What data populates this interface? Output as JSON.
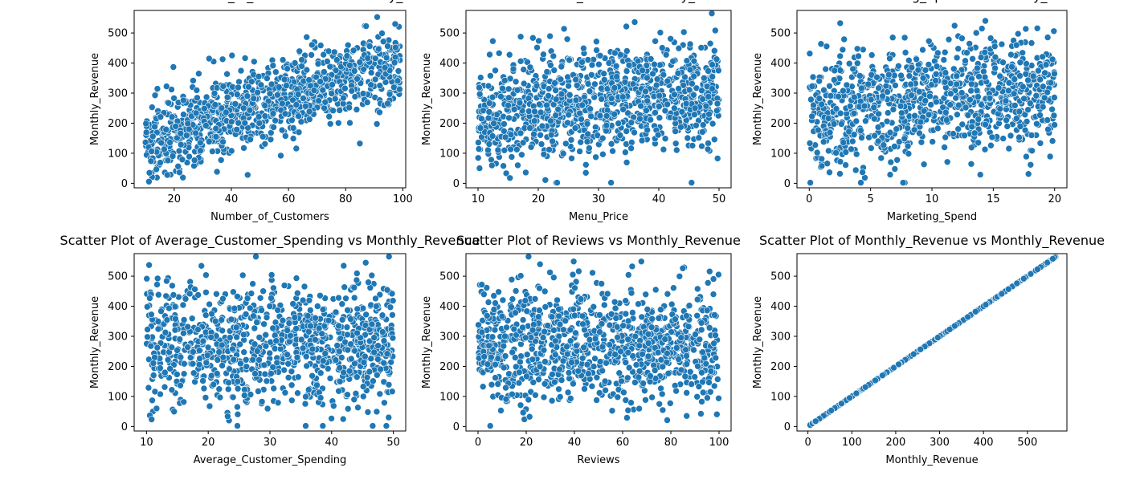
{
  "chart_data": [
    {
      "type": "scatter",
      "title": "Scatter Plot of Number_of_Customers vs Monthly_Revenue",
      "xlabel": "Number_of_Customers",
      "ylabel": "Monthly_Revenue",
      "xlim": [
        6,
        101
      ],
      "ylim": [
        -15,
        575
      ],
      "xticks": [
        20,
        40,
        60,
        80,
        100
      ],
      "yticks": [
        0,
        100,
        200,
        300,
        400,
        500
      ],
      "trend": {
        "x0": 10,
        "x1": 99,
        "y0": 145,
        "y1": 400,
        "noise": 65
      },
      "color": "#1f77b4"
    },
    {
      "type": "scatter",
      "title": "Scatter Plot of Menu_Price vs Monthly_Revenue",
      "xlabel": "Menu_Price",
      "ylabel": "Monthly_Revenue",
      "xlim": [
        8,
        52
      ],
      "ylim": [
        -15,
        575
      ],
      "xticks": [
        10,
        20,
        30,
        40,
        50
      ],
      "yticks": [
        0,
        100,
        200,
        300,
        400,
        500
      ],
      "trend": {
        "x0": 10,
        "x1": 50,
        "y0": 230,
        "y1": 310,
        "noise": 95
      },
      "color": "#1f77b4"
    },
    {
      "type": "scatter",
      "title": "Scatter Plot of Marketing_Spend vs Monthly_Revenue",
      "xlabel": "Marketing_Spend",
      "ylabel": "Monthly_Revenue",
      "xlim": [
        -1,
        21
      ],
      "ylim": [
        -15,
        575
      ],
      "xticks": [
        0,
        5,
        10,
        15,
        20
      ],
      "yticks": [
        0,
        100,
        200,
        300,
        400,
        500
      ],
      "trend": {
        "x0": 0,
        "x1": 20,
        "y0": 240,
        "y1": 310,
        "noise": 95
      },
      "color": "#1f77b4"
    },
    {
      "type": "scatter",
      "title": "Scatter Plot of Average_Customer_Spending vs Monthly_Revenue",
      "xlabel": "Average_Customer_Spending",
      "ylabel": "Monthly_Revenue",
      "xlim": [
        8,
        52
      ],
      "ylim": [
        -15,
        575
      ],
      "xticks": [
        10,
        20,
        30,
        40,
        50
      ],
      "yticks": [
        0,
        100,
        200,
        300,
        400,
        500
      ],
      "trend": {
        "x0": 10,
        "x1": 50,
        "y0": 270,
        "y1": 265,
        "noise": 100
      },
      "color": "#1f77b4"
    },
    {
      "type": "scatter",
      "title": "Scatter Plot of Reviews vs Monthly_Revenue",
      "xlabel": "Reviews",
      "ylabel": "Monthly_Revenue",
      "xlim": [
        -5,
        105
      ],
      "ylim": [
        -15,
        575
      ],
      "xticks": [
        0,
        20,
        40,
        60,
        80,
        100
      ],
      "yticks": [
        0,
        100,
        200,
        300,
        400,
        500
      ],
      "trend": {
        "x0": 0,
        "x1": 100,
        "y0": 275,
        "y1": 265,
        "noise": 100
      },
      "color": "#1f77b4"
    },
    {
      "type": "scatter",
      "title": "Scatter Plot of Monthly_Revenue vs Monthly_Revenue",
      "xlabel": "Monthly_Revenue",
      "ylabel": "Monthly_Revenue",
      "xlim": [
        -25,
        590
      ],
      "ylim": [
        -15,
        575
      ],
      "xticks": [
        0,
        100,
        200,
        300,
        400,
        500
      ],
      "yticks": [
        0,
        100,
        200,
        300,
        400,
        500
      ],
      "trend": {
        "x0": 5,
        "x1": 565,
        "y0": 5,
        "y1": 565,
        "noise": 0
      },
      "color": "#1f77b4"
    }
  ]
}
